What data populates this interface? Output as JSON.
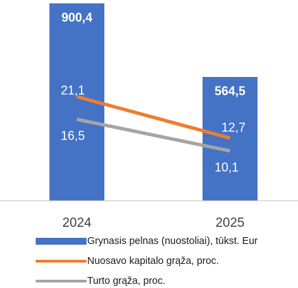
{
  "chart_data": {
    "type": "bar",
    "categories": [
      "2024",
      "2025"
    ],
    "ylim": [
      0,
      900
    ],
    "y2lim": [
      0,
      40
    ],
    "series": [
      {
        "name": "Grynasis pelnas (nuostoliai), tūkst. Eur",
        "type": "bar",
        "color": "#4472c4",
        "values": [
          900.4,
          564.5
        ],
        "value_labels": [
          "900,4",
          "564,5"
        ]
      },
      {
        "name": "Nuosavo kapitalo grąža, proc.",
        "type": "line",
        "axis": "y2",
        "color": "#ed7d31",
        "values": [
          21.1,
          12.7
        ],
        "value_labels": [
          "21,1",
          "12,7"
        ]
      },
      {
        "name": "Turto grąža, proc.",
        "type": "line",
        "axis": "y2",
        "color": "#a5a5a5",
        "values": [
          16.5,
          10.1
        ],
        "value_labels": [
          "16,5",
          "10,1"
        ]
      }
    ]
  }
}
